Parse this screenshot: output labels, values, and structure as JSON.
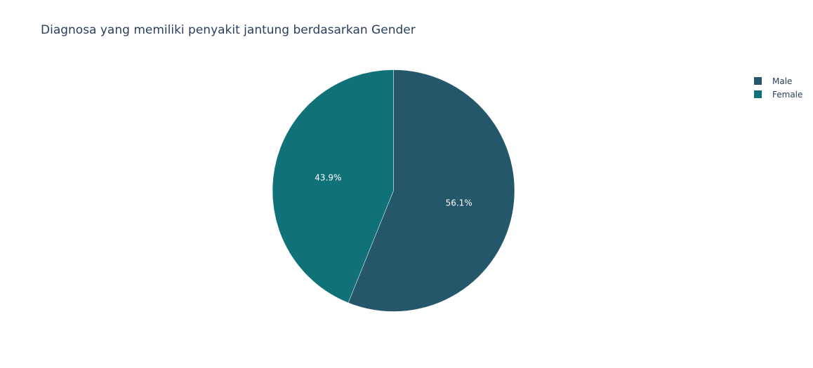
{
  "colors": {
    "title": "#2a3f5f",
    "label": "#ffffff",
    "slice_stroke": "#ffffff"
  },
  "chart_data": {
    "type": "pie",
    "title": "Diagnosa yang memiliki penyakit jantung berdasarkan Gender",
    "start_angle_deg": 90,
    "direction": "clockwise",
    "legend_position": "top-right",
    "slices": [
      {
        "label": "Male",
        "percent": 56.1,
        "percent_text": "56.1%",
        "color": "#24576a"
      },
      {
        "label": "Female",
        "percent": 43.9,
        "percent_text": "43.9%",
        "color": "#117179"
      }
    ]
  }
}
